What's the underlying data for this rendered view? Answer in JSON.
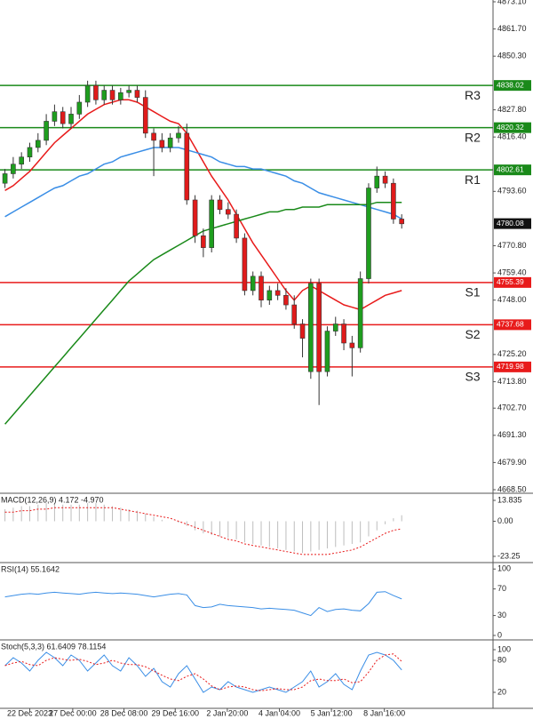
{
  "chart_data": {
    "type": "candlestick",
    "ylim": [
      4667.75,
      4873.85
    ],
    "yticks": [
      {
        "value": 4873.1,
        "label": "4873.10"
      },
      {
        "value": 4861.7,
        "label": "4861.70"
      },
      {
        "value": 4850.3,
        "label": "4850.30"
      },
      {
        "value": 4827.8,
        "label": "4827.80"
      },
      {
        "value": 4816.4,
        "label": "4816.40"
      },
      {
        "value": 4793.6,
        "label": "4793.60"
      },
      {
        "value": 4770.8,
        "label": "4770.80"
      },
      {
        "value": 4759.4,
        "label": "4759.40"
      },
      {
        "value": 4748,
        "label": "4748.00"
      },
      {
        "value": 4725.2,
        "label": "4725.20"
      },
      {
        "value": 4713.8,
        "label": "4713.80"
      },
      {
        "value": 4702.7,
        "label": "4702.70"
      },
      {
        "value": 4691.3,
        "label": "4691.30"
      },
      {
        "value": 4679.9,
        "label": "4679.90"
      },
      {
        "value": 4668.5,
        "label": "4668.50"
      }
    ],
    "xlim": [
      -0.6,
      59.05
    ],
    "xticks": [
      {
        "value": 3,
        "label": "22 Dec 2023"
      },
      {
        "value": 8.2,
        "label": "27 Dec 00:00"
      },
      {
        "value": 14.4,
        "label": "28 Dec 08:00"
      },
      {
        "value": 20.6,
        "label": "29 Dec 16:00"
      },
      {
        "value": 26.9,
        "label": "2 Jan 20:00"
      },
      {
        "value": 33.2,
        "label": "4 Jan 04:00"
      },
      {
        "value": 39.5,
        "label": "5 Jan 12:00"
      },
      {
        "value": 45.9,
        "label": "8 Jan 16:00"
      }
    ],
    "up_color": "#1e9e1e",
    "down_color": "#e01b1b",
    "open": [
      4797,
      4801,
      4805,
      4808,
      4812,
      4815,
      4823,
      4827,
      4822,
      4826,
      4831,
      4838,
      4832,
      4836,
      4832,
      4835,
      4836,
      4833,
      4818,
      4815,
      4812,
      4816,
      4818,
      4790,
      4775,
      4770,
      4790,
      4786,
      4784,
      4774,
      4752,
      4758,
      4748,
      4752,
      4750,
      4746,
      4738,
      4718,
      4755,
      4718,
      4735,
      4738,
      4730,
      4728,
      4757,
      4795,
      4800,
      4797,
      4782
    ],
    "close": [
      4801,
      4805,
      4808,
      4812,
      4815,
      4823,
      4827,
      4822,
      4826,
      4831,
      4838,
      4832,
      4836,
      4832,
      4835,
      4836,
      4833,
      4818,
      4815,
      4812,
      4816,
      4818,
      4790,
      4775,
      4770,
      4790,
      4786,
      4784,
      4774,
      4752,
      4758,
      4748,
      4752,
      4750,
      4746,
      4738,
      4732,
      4755,
      4718,
      4735,
      4738,
      4730,
      4728,
      4757,
      4795,
      4800,
      4797,
      4782,
      4780
    ],
    "high": [
      4803,
      4808,
      4810,
      4814,
      4818,
      4826,
      4830,
      4829,
      4829,
      4834,
      4840,
      4840,
      4838,
      4838,
      4837,
      4838,
      4838,
      4836,
      4820,
      4818,
      4818,
      4821,
      4822,
      4792,
      4778,
      4792,
      4792,
      4789,
      4786,
      4776,
      4760,
      4760,
      4754,
      4755,
      4753,
      4750,
      4740,
      4757,
      4757,
      4737,
      4741,
      4740,
      4733,
      4760,
      4797,
      4804,
      4802,
      4799,
      4784
    ],
    "low": [
      4795,
      4799,
      4803,
      4806,
      4810,
      4813,
      4821,
      4820,
      4820,
      4824,
      4829,
      4830,
      4830,
      4830,
      4830,
      4833,
      4831,
      4816,
      4800,
      4810,
      4810,
      4814,
      4788,
      4772,
      4766,
      4768,
      4784,
      4782,
      4772,
      4750,
      4750,
      4745,
      4746,
      4748,
      4744,
      4736,
      4724,
      4715,
      4704,
      4716,
      4733,
      4727,
      4716,
      4726,
      4755,
      4793,
      4795,
      4780,
      4778
    ],
    "overlays": [
      {
        "color": "#e81b1b",
        "values": [
          4794,
          4796,
          4799,
          4802,
          4806,
          4810,
          4814,
          4817,
          4820,
          4823,
          4826,
          4828,
          4830,
          4831,
          4832,
          4832,
          4831,
          4829,
          4827,
          4825,
          4823,
          4822,
          4818,
          4812,
          4806,
          4800,
          4795,
          4790,
          4784,
          4778,
          4772,
          4767,
          4762,
          4757,
          4752,
          4748,
          4752,
          4754,
          4752,
          4750,
          4748,
          4746,
          4745,
          4744,
          4746,
          4748,
          4750,
          4751,
          4752
        ]
      },
      {
        "color": "#3a8ee6",
        "values": [
          4783,
          4785,
          4787,
          4789,
          4791,
          4793,
          4795,
          4796,
          4798,
          4800,
          4801,
          4803,
          4805,
          4806,
          4808,
          4809,
          4810,
          4811,
          4812,
          4812,
          4812,
          4812,
          4811,
          4810,
          4809,
          4808,
          4806,
          4805,
          4804,
          4804,
          4803,
          4803,
          4802,
          4801,
          4800,
          4798,
          4797,
          4795,
          4793,
          4792,
          4791,
          4790,
          4789,
          4788,
          4787,
          4786,
          4785,
          4784,
          4782
        ]
      },
      {
        "color": "#1a8a1a",
        "values": [
          4696,
          4700,
          4704,
          4708,
          4712,
          4716,
          4720,
          4724,
          4728,
          4732,
          4736,
          4740,
          4744,
          4748,
          4752,
          4756,
          4759,
          4762,
          4765,
          4767,
          4769,
          4771,
          4773,
          4775,
          4777,
          4778,
          4779,
          4780,
          4781,
          4782,
          4783,
          4784,
          4785,
          4785,
          4786,
          4786,
          4787,
          4787,
          4787,
          4788,
          4788,
          4788,
          4788,
          4788,
          4788,
          4789,
          4789,
          4789,
          4789
        ]
      }
    ],
    "levels": [
      {
        "name": "R3",
        "value": 4838.02,
        "color": "#1a8a1a"
      },
      {
        "name": "R2",
        "value": 4820.32,
        "color": "#1a8a1a"
      },
      {
        "name": "R1",
        "value": 4802.61,
        "color": "#1a8a1a"
      },
      {
        "name": "S1",
        "value": 4755.39,
        "color": "#e81b1b"
      },
      {
        "name": "S2",
        "value": 4737.68,
        "color": "#e81b1b"
      },
      {
        "name": "S3",
        "value": 4719.98,
        "color": "#e81b1b"
      }
    ],
    "last_price": 4780.08,
    "indicators": [
      {
        "title": "MACD(12,26,9) 4.172 -4.970",
        "ylim": [
          -26.78,
          17.37
        ],
        "yticks": [
          13.835,
          {
            "value": 0,
            "label": "0.00"
          },
          -23.25
        ],
        "histogram": [
          8,
          9,
          10,
          10,
          11,
          12,
          12,
          11,
          11,
          11,
          12,
          12,
          11,
          10,
          9,
          8,
          7,
          5,
          3,
          1,
          0,
          -1,
          -3,
          -6,
          -8,
          -9,
          -10,
          -11,
          -12,
          -14,
          -15,
          -16,
          -17,
          -18,
          -19,
          -20,
          -21,
          -20,
          -19,
          -18,
          -17,
          -16,
          -15,
          -14,
          -10,
          -6,
          -2,
          2,
          4
        ],
        "histogram_color": "#bdbdbd",
        "signal": [
          6,
          6,
          7,
          7,
          8,
          8,
          9,
          9,
          9,
          9,
          9,
          9,
          9,
          9,
          8,
          7,
          6,
          5,
          4,
          3,
          2,
          0,
          -2,
          -4,
          -6,
          -8,
          -10,
          -12,
          -13,
          -15,
          -16,
          -17,
          -18,
          -19,
          -20,
          -21,
          -22,
          -22,
          -22,
          -22,
          -21,
          -20,
          -19,
          -17,
          -14,
          -11,
          -8,
          -6,
          -5
        ],
        "signal_color": "#e81b1b"
      },
      {
        "title": "RSI(14) 55.1642",
        "ylim": [
          -4,
          107
        ],
        "yticks": [
          100,
          70,
          30,
          0
        ],
        "values": [
          58,
          60,
          62,
          63,
          62,
          64,
          65,
          64,
          63,
          62,
          64,
          65,
          64,
          63,
          64,
          63,
          62,
          60,
          58,
          60,
          62,
          63,
          61,
          45,
          42,
          43,
          47,
          45,
          44,
          43,
          42,
          40,
          41,
          40,
          39,
          38,
          34,
          30,
          42,
          36,
          39,
          40,
          38,
          37,
          48,
          65,
          66,
          60,
          55
        ],
        "color": "#3a8ee6"
      },
      {
        "title": "Stoch(5,3,3) 61.6409 78.1154",
        "ylim": [
          -10,
          115
        ],
        "yticks": [
          100,
          80,
          20
        ],
        "k": [
          70,
          85,
          75,
          60,
          80,
          95,
          85,
          70,
          90,
          80,
          60,
          75,
          90,
          70,
          60,
          85,
          70,
          50,
          65,
          40,
          30,
          55,
          70,
          45,
          20,
          30,
          25,
          40,
          30,
          25,
          20,
          25,
          30,
          25,
          20,
          30,
          40,
          60,
          30,
          40,
          55,
          35,
          25,
          60,
          90,
          95,
          90,
          80,
          62
        ],
        "k_color": "#3a8ee6",
        "d": [
          70,
          75,
          78,
          72,
          70,
          80,
          85,
          82,
          80,
          82,
          78,
          72,
          75,
          80,
          75,
          72,
          72,
          68,
          60,
          52,
          45,
          42,
          50,
          55,
          45,
          32,
          25,
          30,
          32,
          30,
          25,
          23,
          25,
          27,
          25,
          25,
          30,
          42,
          45,
          42,
          42,
          45,
          38,
          40,
          58,
          80,
          90,
          92,
          78
        ],
        "d_color": "#e81b1b"
      }
    ]
  }
}
